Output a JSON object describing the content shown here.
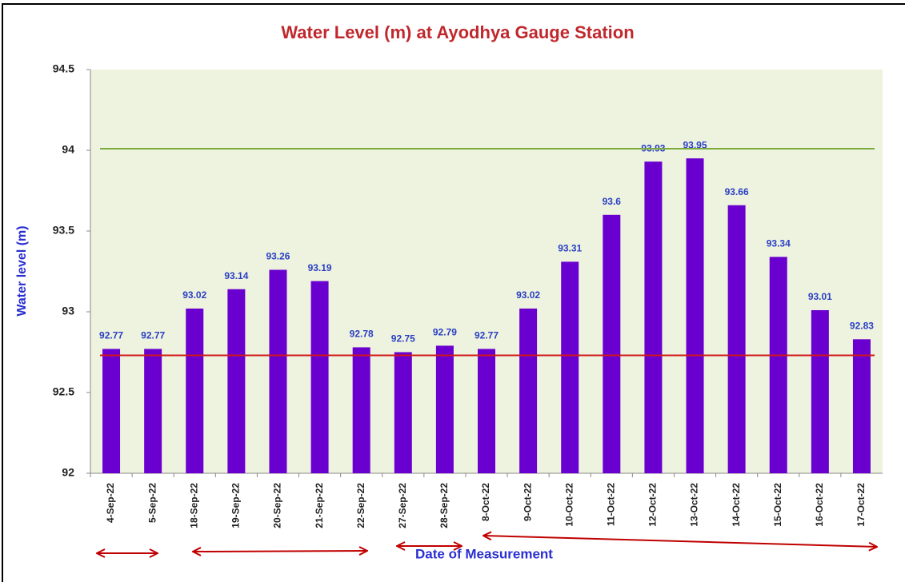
{
  "chart_data": {
    "type": "bar",
    "title": "Water Level (m) at Ayodhya Gauge Station",
    "y_label": "Water level (m)",
    "x_label": "Date  of Measurement",
    "categories": [
      "4-Sep-22",
      "5-Sep-22",
      "18-Sep-22",
      "19-Sep-22",
      "20-Sep-22",
      "21-Sep-22",
      "22-Sep-22",
      "27-Sep-22",
      "28-Sep-22",
      "8-Oct-22",
      "9-Oct-22",
      "10-Oct-22",
      "11-Oct-22",
      "12-Oct-22",
      "13-Oct-22",
      "14-Oct-22",
      "15-Oct-22",
      "16-Oct-22",
      "17-Oct-22"
    ],
    "values": [
      92.77,
      92.77,
      93.02,
      93.14,
      93.26,
      93.19,
      92.78,
      92.75,
      92.79,
      92.77,
      93.02,
      93.31,
      93.6,
      93.93,
      93.95,
      93.66,
      93.34,
      93.01,
      92.83
    ],
    "color": "#6a00d0",
    "ylim": [
      92,
      94.5
    ],
    "yticks": [
      92,
      92.5,
      93,
      93.5,
      94,
      94.5
    ],
    "reference_lines": [
      {
        "value": 94.01,
        "color": "#7aab3c"
      },
      {
        "value": 92.73,
        "color": "#d01818"
      }
    ],
    "grid": false
  }
}
